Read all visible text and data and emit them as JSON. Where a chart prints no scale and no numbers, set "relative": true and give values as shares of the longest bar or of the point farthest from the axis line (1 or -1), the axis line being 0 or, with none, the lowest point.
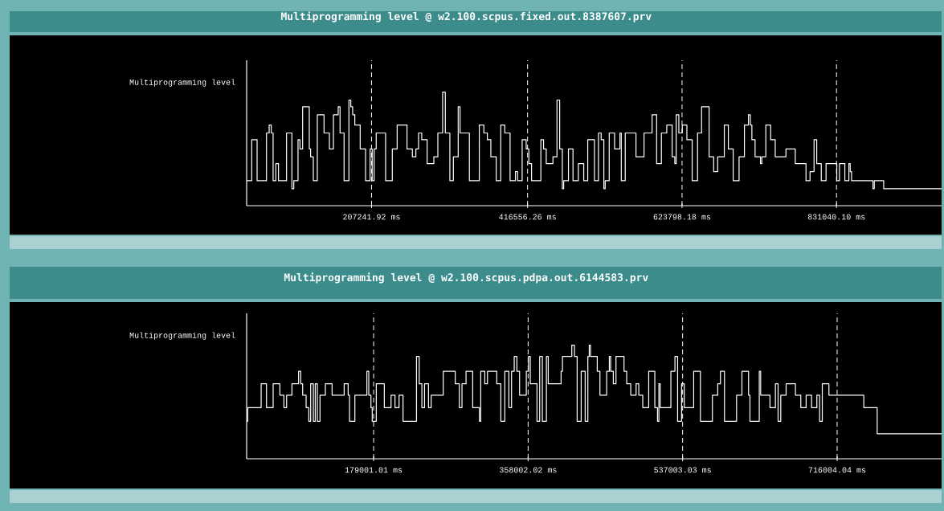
{
  "chart_data": [
    {
      "type": "step",
      "title": "Multiprogramming level @ w2.100.scpus.fixed.out.8387607.prv",
      "ylabel": "Multiprogramming level",
      "relative": true,
      "grid": "x",
      "color": "#ffffff",
      "x": [
        39685,
        46500,
        53700,
        66300,
        69900,
        72700,
        75200,
        78800,
        82400,
        93200,
        100400,
        102900,
        108600,
        111200,
        114800,
        123700,
        125500,
        129100,
        134500,
        143500,
        150700,
        156100,
        162500,
        165000,
        170400,
        176900,
        179400,
        181900,
        184800,
        192000,
        199200,
        205300,
        208100,
        210700,
        213500,
        226100,
        235100,
        241600,
        254800,
        262000,
        266700,
        270300,
        274600,
        281800,
        290800,
        296200,
        302600,
        306200,
        312300,
        317000,
        323500,
        326000,
        338500,
        351800,
        357900,
        362600,
        367300,
        374500,
        380600,
        386000,
        393100,
        400300,
        403200,
        409300,
        414700,
        418300,
        421900,
        434400,
        438000,
        441600,
        450600,
        456000,
        459600,
        463200,
        465000,
        471400,
        477500,
        484700,
        491900,
        497300,
        506300,
        511700,
        515300,
        518900,
        520700,
        526100,
        533300,
        540500,
        542300,
        547600,
        562000,
        572800,
        583600,
        589700,
        596100,
        603300,
        610500,
        614100,
        615900,
        619500,
        624100,
        630300,
        637400,
        644600,
        650000,
        660100,
        666200,
        671600,
        680500,
        685900,
        692400,
        700300,
        707500,
        712900,
        715400,
        717500,
        721800,
        729000,
        730800,
        736200,
        742700,
        748800,
        763200,
        775700,
        790100,
        795500,
        800900,
        804500,
        810600,
        817000,
        831400,
        835000,
        842200,
        847600,
        849400,
        851200,
        879900,
        881700,
        894300,
        972000
      ],
      "values": [
        0.22,
        0.58,
        0.22,
        0.64,
        0.71,
        0.64,
        0.22,
        0.37,
        0.22,
        0.64,
        0.15,
        0.22,
        0.58,
        0.5,
        0.87,
        0.5,
        0.43,
        0.22,
        0.8,
        0.64,
        0.5,
        0.8,
        0.87,
        0.64,
        0.22,
        0.93,
        0.87,
        0.8,
        0.71,
        0.5,
        0.22,
        0.5,
        0.22,
        0.5,
        0.64,
        0.22,
        0.5,
        0.71,
        0.5,
        0.43,
        0.5,
        0.64,
        0.58,
        0.37,
        0.43,
        0.64,
        1.0,
        0.64,
        0.22,
        0.43,
        0.87,
        0.64,
        0.22,
        0.71,
        0.64,
        0.58,
        0.43,
        0.22,
        0.71,
        0.64,
        0.22,
        0.3,
        0.22,
        0.58,
        0.5,
        0.37,
        0.22,
        0.58,
        0.5,
        0.37,
        0.43,
        0.93,
        0.5,
        0.15,
        0.22,
        0.5,
        0.22,
        0.37,
        0.22,
        0.58,
        0.22,
        0.64,
        0.58,
        0.15,
        0.22,
        0.64,
        0.5,
        0.64,
        0.22,
        0.64,
        0.43,
        0.64,
        0.8,
        0.37,
        0.64,
        0.71,
        0.43,
        0.37,
        0.8,
        0.64,
        0.71,
        0.58,
        0.22,
        0.64,
        0.87,
        0.43,
        0.3,
        0.43,
        0.71,
        0.5,
        0.22,
        0.43,
        0.71,
        0.8,
        0.71,
        0.58,
        0.43,
        0.37,
        0.43,
        0.71,
        0.58,
        0.43,
        0.5,
        0.37,
        0.22,
        0.3,
        0.58,
        0.37,
        0.22,
        0.37,
        0.22,
        0.37,
        0.22,
        0.37,
        0.3,
        0.22,
        0.15,
        0.22,
        0.15,
        0.15
      ],
      "xlim": [
        39685,
        972000
      ],
      "xticks": [
        {
          "value": 207241.92,
          "label": "207241.92 ms"
        },
        {
          "value": 416556.26,
          "label": "416556.26 ms"
        },
        {
          "value": 623798.18,
          "label": "623798.18 ms"
        },
        {
          "value": 831040.1,
          "label": "831040.10 ms"
        }
      ]
    },
    {
      "type": "step",
      "title": "Multiprogramming level @ w2.100.scpus.pdpa.out.6144583.prv",
      "ylabel": "Multiprogramming level",
      "relative": true,
      "grid": "x",
      "color": "#ffffff",
      "x": [
        31919,
        33200,
        48700,
        54900,
        62600,
        70400,
        75100,
        78200,
        84400,
        92100,
        94600,
        96800,
        100800,
        103900,
        106100,
        109200,
        111400,
        113800,
        116900,
        123100,
        130900,
        144900,
        149500,
        151100,
        157300,
        171200,
        173400,
        175900,
        177400,
        182100,
        191400,
        199200,
        203800,
        208500,
        213100,
        228700,
        231800,
        234900,
        238000,
        242600,
        245700,
        259700,
        273600,
        278300,
        281400,
        286100,
        293800,
        301600,
        303100,
        307800,
        310900,
        321700,
        326400,
        331000,
        335700,
        338800,
        341900,
        345000,
        348100,
        355900,
        358400,
        360500,
        368300,
        371400,
        374500,
        379200,
        381300,
        396200,
        397800,
        408600,
        411700,
        414800,
        419500,
        424100,
        427200,
        428800,
        430300,
        438100,
        441200,
        449000,
        452100,
        453600,
        456700,
        459800,
        469100,
        472200,
        476900,
        483100,
        486200,
        490800,
        497700,
        504800,
        507900,
        509500,
        511000,
        523400,
        528100,
        531200,
        535800,
        538900,
        549800,
        557600,
        571500,
        577700,
        580800,
        585500,
        599500,
        605700,
        613400,
        615000,
        625800,
        627400,
        638200,
        644500,
        647600,
        650700,
        656900,
        667700,
        673900,
        680100,
        686400,
        692500,
        695700,
        698800,
        706500,
        746900,
        762400,
        837021
      ],
      "values": [
        0.33,
        0.45,
        0.66,
        0.45,
        0.66,
        0.56,
        0.45,
        0.56,
        0.66,
        0.77,
        0.66,
        0.56,
        0.45,
        0.33,
        0.66,
        0.33,
        0.66,
        0.33,
        0.56,
        0.66,
        0.56,
        0.66,
        0.56,
        0.33,
        0.56,
        0.77,
        0.56,
        0.45,
        0.33,
        0.66,
        0.45,
        0.56,
        0.45,
        0.56,
        0.33,
        0.9,
        0.66,
        0.45,
        0.66,
        0.45,
        0.56,
        0.77,
        0.66,
        0.45,
        0.66,
        0.77,
        0.45,
        0.33,
        0.77,
        0.66,
        0.77,
        0.66,
        0.33,
        0.77,
        0.45,
        0.77,
        0.9,
        0.77,
        0.56,
        0.77,
        0.9,
        0.66,
        0.33,
        0.9,
        0.33,
        0.9,
        0.66,
        0.77,
        0.9,
        1.0,
        0.9,
        0.33,
        0.77,
        0.33,
        0.9,
        1.0,
        0.9,
        0.77,
        0.56,
        0.77,
        0.9,
        0.77,
        0.66,
        0.9,
        0.77,
        0.66,
        0.56,
        0.66,
        0.56,
        0.45,
        0.77,
        0.45,
        0.33,
        0.66,
        0.45,
        0.77,
        0.9,
        0.33,
        0.66,
        0.45,
        0.77,
        0.33,
        0.56,
        0.66,
        0.77,
        0.33,
        0.56,
        0.77,
        0.56,
        0.33,
        0.77,
        0.56,
        0.45,
        0.66,
        0.33,
        0.56,
        0.66,
        0.56,
        0.45,
        0.56,
        0.45,
        0.56,
        0.33,
        0.66,
        0.56,
        0.45,
        0.22,
        0.22
      ],
      "xlim": [
        31919,
        837021
      ],
      "xticks": [
        {
          "value": 179001.01,
          "label": "179001.01 ms"
        },
        {
          "value": 358002.02,
          "label": "358002.02 ms"
        },
        {
          "value": 537003.03,
          "label": "537003.03 ms"
        },
        {
          "value": 716004.04,
          "label": "716004.04 ms"
        }
      ]
    }
  ]
}
